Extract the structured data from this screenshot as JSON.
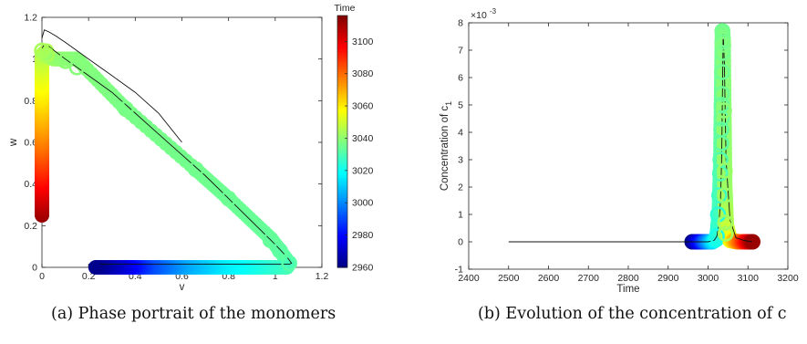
{
  "captions": {
    "a": "(a) Phase portrait of the monomers",
    "b": "(b) Evolution of the concentration of c"
  },
  "chart_data": [
    {
      "id": "a",
      "type": "scatter",
      "xlabel": "v",
      "ylabel": "w",
      "xlim": [
        0,
        1.2
      ],
      "ylim": [
        0,
        1.2
      ],
      "xticks": [
        "0",
        "0.2",
        "0.4",
        "0.6",
        "0.8",
        "1",
        "1.2"
      ],
      "yticks": [
        "0",
        "0.2",
        "0.4",
        "0.6",
        "0.8",
        "1",
        "1.2"
      ],
      "colorbar": {
        "label": "Time",
        "range": [
          2960,
          3116
        ],
        "ticks": [
          "2960",
          "2980",
          "3000",
          "3020",
          "3040",
          "3060",
          "3080",
          "3100"
        ],
        "colormap": "jet"
      },
      "curves": [
        {
          "x": [
            0.0,
            0.01,
            0.03,
            0.06,
            0.1,
            0.2,
            0.3,
            0.4,
            0.5,
            0.6
          ],
          "y": [
            1.1,
            1.14,
            1.13,
            1.11,
            1.08,
            1.0,
            0.92,
            0.84,
            0.74,
            0.6
          ]
        },
        {
          "x": [
            0.0,
            0.01,
            0.03,
            0.1,
            0.2,
            0.3,
            0.4,
            0.5,
            0.6,
            0.7,
            0.8,
            0.9,
            1.0,
            1.05,
            1.07,
            1.06,
            1.0,
            0.8,
            0.6,
            0.4,
            0.25
          ],
          "y": [
            1.05,
            1.07,
            1.06,
            1.0,
            0.92,
            0.84,
            0.74,
            0.64,
            0.54,
            0.44,
            0.33,
            0.22,
            0.11,
            0.05,
            0.02,
            0.015,
            0.015,
            0.015,
            0.015,
            0.015,
            0.015
          ]
        }
      ],
      "thick_trajectory": [
        {
          "v": 0.0,
          "w": 0.25,
          "t": 3112
        },
        {
          "v": 0.0,
          "w": 0.42,
          "t": 3095
        },
        {
          "v": 0.0,
          "w": 0.6,
          "t": 3078
        },
        {
          "v": 0.0,
          "w": 0.8,
          "t": 3062
        },
        {
          "v": 0.0,
          "w": 0.95,
          "t": 3052
        },
        {
          "v": 0.0,
          "w": 1.02,
          "t": 3047
        },
        {
          "v": 0.02,
          "w": 1.04,
          "t": 3045
        },
        {
          "v": 0.03,
          "w": 1.01,
          "t": 3044
        },
        {
          "v": 0.05,
          "w": 1.0,
          "t": 3042
        },
        {
          "v": 0.1,
          "w": 1.0,
          "t": 3040
        },
        {
          "v": 0.15,
          "w": 1.0,
          "t": 3039
        },
        {
          "v": 0.36,
          "w": 0.76,
          "t": 3037
        },
        {
          "v": 0.66,
          "w": 0.47,
          "t": 3036
        },
        {
          "v": 0.8,
          "w": 0.33,
          "t": 3035
        },
        {
          "v": 0.98,
          "w": 0.14,
          "t": 3034
        },
        {
          "v": 1.02,
          "w": 0.08,
          "t": 3033
        },
        {
          "v": 1.06,
          "w": 0.02,
          "t": 3032
        },
        {
          "v": 1.05,
          "w": 0.0,
          "t": 3030
        },
        {
          "v": 0.9,
          "w": 0.0,
          "t": 3022
        },
        {
          "v": 0.75,
          "w": 0.0,
          "t": 3015
        },
        {
          "v": 0.6,
          "w": 0.0,
          "t": 3005
        },
        {
          "v": 0.45,
          "w": 0.0,
          "t": 2990
        },
        {
          "v": 0.35,
          "w": 0.0,
          "t": 2975
        },
        {
          "v": 0.23,
          "w": 0.0,
          "t": 2962
        }
      ],
      "markers": [
        {
          "v": 0.0,
          "w": 1.04,
          "t": 3044
        },
        {
          "v": 0.02,
          "w": 1.02,
          "t": 3044
        },
        {
          "v": 0.1,
          "w": 0.99,
          "t": 3040
        },
        {
          "v": 0.15,
          "w": 0.96,
          "t": 3039
        },
        {
          "v": 0.36,
          "w": 0.76,
          "t": 3037
        },
        {
          "v": 0.66,
          "w": 0.47,
          "t": 3036
        },
        {
          "v": 0.8,
          "w": 0.33,
          "t": 3035
        },
        {
          "v": 0.98,
          "w": 0.13,
          "t": 3034
        },
        {
          "v": 1.02,
          "w": 0.08,
          "t": 3033
        },
        {
          "v": 1.06,
          "w": 0.02,
          "t": 3032
        }
      ]
    },
    {
      "id": "b",
      "type": "scatter",
      "xlabel": "Time",
      "ylabel": "Concentration  of c",
      "ylabel_sub": "1",
      "exponent": "×10",
      "exponent_power": "-3",
      "xlim": [
        2400,
        3200
      ],
      "ylim": [
        -1,
        8
      ],
      "xticks": [
        "2400",
        "2500",
        "2600",
        "2700",
        "2800",
        "2900",
        "3000",
        "3100",
        "3200"
      ],
      "yticks": [
        "-1",
        "0",
        "1",
        "2",
        "3",
        "4",
        "5",
        "6",
        "7",
        "8"
      ],
      "curve": {
        "x": [
          2500,
          2950,
          3000,
          3015,
          3022,
          3027,
          3031,
          3034,
          3036,
          3038,
          3041,
          3045,
          3055,
          3070,
          3090,
          3110
        ],
        "y": [
          0.0,
          0.0,
          0.0,
          0.05,
          0.2,
          0.6,
          1.5,
          3.0,
          5.5,
          7.6,
          6.5,
          3.0,
          0.8,
          0.15,
          0.05,
          0.0
        ]
      },
      "thick_trajectory": [
        {
          "x": 2960,
          "y": 0.0,
          "t": 2960
        },
        {
          "x": 2990,
          "y": 0.0,
          "t": 2990
        },
        {
          "x": 3010,
          "y": 0.0,
          "t": 3010
        },
        {
          "x": 3022,
          "y": 0.1,
          "t": 3022
        },
        {
          "x": 3028,
          "y": 1.0,
          "t": 3028
        },
        {
          "x": 3032,
          "y": 3.0,
          "t": 3032
        },
        {
          "x": 3034,
          "y": 5.5,
          "t": 3034
        },
        {
          "x": 3036,
          "y": 7.7,
          "t": 3036
        },
        {
          "x": 3038,
          "y": 7.3,
          "t": 3038
        },
        {
          "x": 3040,
          "y": 4.5,
          "t": 3040
        },
        {
          "x": 3042,
          "y": 2.0,
          "t": 3042
        },
        {
          "x": 3046,
          "y": 0.6,
          "t": 3046
        },
        {
          "x": 3055,
          "y": 0.05,
          "t": 3055
        },
        {
          "x": 3075,
          "y": 0.0,
          "t": 3075
        },
        {
          "x": 3112,
          "y": 0.0,
          "t": 3112
        }
      ],
      "markers": [
        {
          "x": 3022,
          "y": 0.2,
          "t": 3022
        },
        {
          "x": 3025,
          "y": 1.0,
          "t": 3025
        },
        {
          "x": 3028,
          "y": 1.7,
          "t": 3028
        },
        {
          "x": 3030,
          "y": 2.5,
          "t": 3030
        },
        {
          "x": 3031,
          "y": 3.0,
          "t": 3031
        },
        {
          "x": 3033,
          "y": 3.6,
          "t": 3033
        },
        {
          "x": 3033,
          "y": 4.1,
          "t": 3033
        },
        {
          "x": 3034,
          "y": 4.5,
          "t": 3034
        },
        {
          "x": 3034,
          "y": 5.0,
          "t": 3034
        },
        {
          "x": 3035,
          "y": 5.4,
          "t": 3035
        },
        {
          "x": 3035,
          "y": 6.2,
          "t": 3035
        },
        {
          "x": 3036,
          "y": 6.9,
          "t": 3036
        },
        {
          "x": 3036,
          "y": 7.3,
          "t": 3036
        },
        {
          "x": 3036,
          "y": 7.7,
          "t": 3036
        },
        {
          "x": 3038,
          "y": 7.2,
          "t": 3038
        },
        {
          "x": 3040,
          "y": 4.8,
          "t": 3040
        },
        {
          "x": 3042,
          "y": 2.6,
          "t": 3042
        },
        {
          "x": 3042,
          "y": 1.7,
          "t": 3042
        },
        {
          "x": 3043,
          "y": 0.7,
          "t": 3043
        },
        {
          "x": 3044,
          "y": 0.3,
          "t": 3044
        }
      ]
    }
  ]
}
